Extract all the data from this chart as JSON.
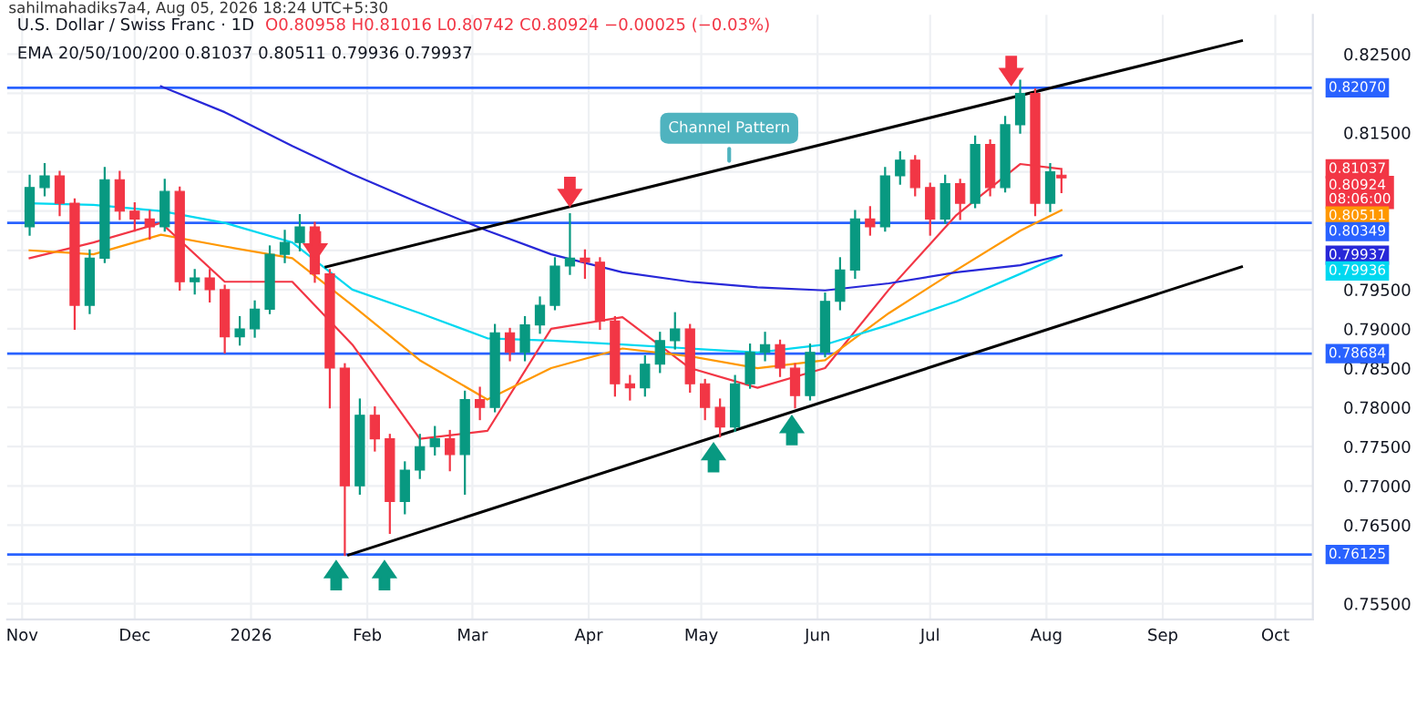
{
  "chart_data": {
    "type": "candlestick",
    "title": "U.S. Dollar / Swiss Franc · 1D",
    "subtitle": "EMA 20/50/100/200 0.81037 0.80511 0.79936 0.79937",
    "annotations": [
      "sahilmahadiks7a4, Aug 05, 2026 18:24 UTC+5:30",
      "O0.80958 H0.81016 L0.80742 C0.80924 −0.00025 (−0.03%)",
      "Channel Pattern",
      "0.80924\n08:06:00",
      "0.81037",
      "0.80511",
      "0.79936",
      "0.79937"
    ],
    "x": [
      "2025-11-03",
      "2025-11-07",
      "2025-11-11",
      "2025-11-15",
      "2025-11-19",
      "2025-11-23",
      "2025-11-27",
      "2025-12-01",
      "2025-12-05",
      "2025-12-09",
      "2025-12-13",
      "2025-12-17",
      "2025-12-21",
      "2025-12-25",
      "2025-12-29",
      "2026-01-02",
      "2026-01-06",
      "2026-01-10",
      "2026-01-14",
      "2026-01-18",
      "2026-01-22",
      "2026-01-26",
      "2026-01-30",
      "2026-02-03",
      "2026-02-07",
      "2026-02-11",
      "2026-02-15",
      "2026-02-19",
      "2026-02-23",
      "2026-02-27",
      "2026-03-03",
      "2026-03-07",
      "2026-03-11",
      "2026-03-15",
      "2026-03-19",
      "2026-03-23",
      "2026-03-27",
      "2026-03-31",
      "2026-04-04",
      "2026-04-08",
      "2026-04-12",
      "2026-04-16",
      "2026-04-20",
      "2026-04-24",
      "2026-04-28",
      "2026-05-02",
      "2026-05-06",
      "2026-05-10",
      "2026-05-14",
      "2026-05-18",
      "2026-05-22",
      "2026-05-26",
      "2026-05-30",
      "2026-06-03",
      "2026-06-07",
      "2026-06-11",
      "2026-06-15",
      "2026-06-19",
      "2026-06-23",
      "2026-06-27",
      "2026-07-01",
      "2026-07-05",
      "2026-07-09",
      "2026-07-13",
      "2026-07-17",
      "2026-07-21",
      "2026-07-25",
      "2026-07-29",
      "2026-08-02",
      "2026-08-05"
    ],
    "ohlc": [
      [
        0.803,
        0.8095,
        0.802,
        0.808
      ],
      [
        0.808,
        0.811,
        0.807,
        0.8095
      ],
      [
        0.8095,
        0.81,
        0.8045,
        0.806
      ],
      [
        0.806,
        0.8065,
        0.79,
        0.793
      ],
      [
        0.793,
        0.8,
        0.792,
        0.799
      ],
      [
        0.799,
        0.8105,
        0.7985,
        0.809
      ],
      [
        0.809,
        0.81,
        0.804,
        0.805
      ],
      [
        0.805,
        0.806,
        0.8025,
        0.804
      ],
      [
        0.804,
        0.805,
        0.8015,
        0.803
      ],
      [
        0.803,
        0.809,
        0.8025,
        0.8075
      ],
      [
        0.8075,
        0.808,
        0.795,
        0.796
      ],
      [
        0.796,
        0.7975,
        0.7945,
        0.7965
      ],
      [
        0.7965,
        0.7975,
        0.7935,
        0.795
      ],
      [
        0.795,
        0.7955,
        0.787,
        0.789
      ],
      [
        0.789,
        0.7915,
        0.788,
        0.79
      ],
      [
        0.79,
        0.7935,
        0.789,
        0.7925
      ],
      [
        0.7925,
        0.8005,
        0.792,
        0.7995
      ],
      [
        0.7995,
        0.8025,
        0.7985,
        0.801
      ],
      [
        0.801,
        0.8045,
        0.8,
        0.803
      ],
      [
        0.803,
        0.8035,
        0.796,
        0.797
      ],
      [
        0.797,
        0.7975,
        0.78,
        0.785
      ],
      [
        0.785,
        0.7855,
        0.7612,
        0.77
      ],
      [
        0.77,
        0.781,
        0.769,
        0.779
      ],
      [
        0.779,
        0.78,
        0.7745,
        0.776
      ],
      [
        0.776,
        0.7765,
        0.764,
        0.768
      ],
      [
        0.768,
        0.773,
        0.7665,
        0.772
      ],
      [
        0.772,
        0.7765,
        0.771,
        0.775
      ],
      [
        0.775,
        0.7775,
        0.774,
        0.776
      ],
      [
        0.776,
        0.777,
        0.772,
        0.774
      ],
      [
        0.774,
        0.782,
        0.769,
        0.781
      ],
      [
        0.781,
        0.7825,
        0.7785,
        0.78
      ],
      [
        0.78,
        0.7905,
        0.7795,
        0.7895
      ],
      [
        0.7895,
        0.79,
        0.786,
        0.787
      ],
      [
        0.787,
        0.7915,
        0.786,
        0.7905
      ],
      [
        0.7905,
        0.794,
        0.7895,
        0.793
      ],
      [
        0.793,
        0.799,
        0.7925,
        0.798
      ],
      [
        0.798,
        0.8046,
        0.797,
        0.799
      ],
      [
        0.799,
        0.8,
        0.7965,
        0.7985
      ],
      [
        0.7985,
        0.799,
        0.79,
        0.791
      ],
      [
        0.791,
        0.7915,
        0.7815,
        0.783
      ],
      [
        0.783,
        0.784,
        0.781,
        0.7825
      ],
      [
        0.7825,
        0.7865,
        0.7815,
        0.7855
      ],
      [
        0.7855,
        0.7895,
        0.7845,
        0.7885
      ],
      [
        0.7885,
        0.792,
        0.7875,
        0.79
      ],
      [
        0.79,
        0.7905,
        0.782,
        0.783
      ],
      [
        0.783,
        0.7835,
        0.7785,
        0.78
      ],
      [
        0.78,
        0.781,
        0.7763,
        0.7775
      ],
      [
        0.7775,
        0.784,
        0.777,
        0.783
      ],
      [
        0.783,
        0.788,
        0.7825,
        0.787
      ],
      [
        0.787,
        0.7895,
        0.786,
        0.788
      ],
      [
        0.788,
        0.7885,
        0.784,
        0.785
      ],
      [
        0.785,
        0.7855,
        0.78,
        0.7815
      ],
      [
        0.7815,
        0.788,
        0.781,
        0.787
      ],
      [
        0.787,
        0.7945,
        0.7865,
        0.7935
      ],
      [
        0.7935,
        0.799,
        0.7925,
        0.7975
      ],
      [
        0.7975,
        0.805,
        0.7965,
        0.804
      ],
      [
        0.804,
        0.8055,
        0.802,
        0.803
      ],
      [
        0.803,
        0.8105,
        0.8025,
        0.8095
      ],
      [
        0.8095,
        0.8125,
        0.8085,
        0.8115
      ],
      [
        0.8115,
        0.812,
        0.807,
        0.808
      ],
      [
        0.808,
        0.8085,
        0.802,
        0.804
      ],
      [
        0.804,
        0.8095,
        0.8035,
        0.8085
      ],
      [
        0.8085,
        0.809,
        0.804,
        0.806
      ],
      [
        0.806,
        0.8145,
        0.8055,
        0.8135
      ],
      [
        0.8135,
        0.814,
        0.807,
        0.808
      ],
      [
        0.808,
        0.817,
        0.8075,
        0.816
      ],
      [
        0.816,
        0.8216,
        0.815,
        0.82
      ],
      [
        0.82,
        0.8205,
        0.8045,
        0.806
      ],
      [
        0.806,
        0.811,
        0.805,
        0.81
      ],
      [
        0.80958,
        0.81016,
        0.80742,
        0.80924
      ]
    ],
    "series": [
      {
        "type": "line",
        "color": "#f23645",
        "x": [
          "2025-11-03",
          "2025-11-20",
          "2025-12-08",
          "2025-12-25",
          "2026-01-12",
          "2026-01-28",
          "2026-02-15",
          "2026-03-05",
          "2026-03-22",
          "2026-04-10",
          "2026-04-28",
          "2026-05-16",
          "2026-06-03",
          "2026-06-20",
          "2026-07-08",
          "2026-07-25",
          "2026-08-05"
        ],
        "values": [
          0.799,
          0.801,
          0.8035,
          0.796,
          0.796,
          0.788,
          0.776,
          0.777,
          0.79,
          0.7915,
          0.785,
          0.7825,
          0.785,
          0.795,
          0.8045,
          0.811,
          0.81037
        ]
      },
      {
        "type": "line",
        "color": "#ff9800",
        "x": [
          "2025-11-03",
          "2025-11-20",
          "2025-12-08",
          "2025-12-25",
          "2026-01-12",
          "2026-01-28",
          "2026-02-15",
          "2026-03-05",
          "2026-03-22",
          "2026-04-10",
          "2026-04-28",
          "2026-05-16",
          "2026-06-03",
          "2026-06-20",
          "2026-07-08",
          "2026-07-25",
          "2026-08-05"
        ],
        "values": [
          0.8,
          0.7995,
          0.802,
          0.8005,
          0.799,
          0.793,
          0.786,
          0.781,
          0.785,
          0.7875,
          0.7865,
          0.785,
          0.786,
          0.792,
          0.7975,
          0.8025,
          0.80511
        ]
      },
      {
        "type": "line",
        "color": "#00d8f0",
        "x": [
          "2025-11-03",
          "2025-11-20",
          "2025-12-08",
          "2025-12-25",
          "2026-01-12",
          "2026-01-28",
          "2026-02-15",
          "2026-03-05",
          "2026-03-22",
          "2026-04-10",
          "2026-04-28",
          "2026-05-16",
          "2026-06-03",
          "2026-06-20",
          "2026-07-08",
          "2026-07-25",
          "2026-08-05"
        ],
        "values": [
          0.806,
          0.8058,
          0.805,
          0.8035,
          0.801,
          0.795,
          0.792,
          0.7888,
          0.7885,
          0.788,
          0.7875,
          0.787,
          0.788,
          0.7905,
          0.7935,
          0.797,
          0.79936
        ]
      },
      {
        "type": "line",
        "color": "#2828d8",
        "x": [
          "2025-12-08",
          "2025-12-25",
          "2026-01-12",
          "2026-01-28",
          "2026-02-15",
          "2026-03-05",
          "2026-03-22",
          "2026-04-10",
          "2026-04-28",
          "2026-05-16",
          "2026-06-03",
          "2026-06-20",
          "2026-07-08",
          "2026-07-25",
          "2026-08-05"
        ],
        "values": [
          0.8209,
          0.8176,
          0.8133,
          0.8097,
          0.806,
          0.8025,
          0.7995,
          0.7972,
          0.796,
          0.7953,
          0.7949,
          0.7958,
          0.7972,
          0.7981,
          0.79937
        ]
      },
      {
        "type": "line",
        "color": "#000000",
        "x": [
          "2026-01-21",
          "2026-09-22"
        ],
        "values": [
          0.7979,
          0.8267
        ]
      },
      {
        "type": "line",
        "color": "#000000",
        "x": [
          "2026-01-27",
          "2026-09-22"
        ],
        "values": [
          0.7612,
          0.7979
        ]
      }
    ],
    "ref_lines": [
      {
        "axis": "y",
        "value": 0.8207,
        "label": "0.82070",
        "color": "#2962ff"
      },
      {
        "axis": "y",
        "value": 0.80349,
        "label": "0.80349",
        "color": "#2962ff"
      },
      {
        "axis": "y",
        "value": 0.78684,
        "label": "0.78684",
        "color": "#2962ff"
      },
      {
        "axis": "y",
        "value": 0.76125,
        "label": "0.76125",
        "color": "#2962ff"
      }
    ],
    "xlim": [
      "2025-10-28",
      "2026-10-11"
    ],
    "xticks": [
      {
        "value": "2025-11-01",
        "label": "Nov"
      },
      {
        "value": "2025-12-01",
        "label": "Dec"
      },
      {
        "value": "2026-01-01",
        "label": "2026"
      },
      {
        "value": "2026-02-01",
        "label": "Feb"
      },
      {
        "value": "2026-03-01",
        "label": "Mar"
      },
      {
        "value": "2026-04-01",
        "label": "Apr"
      },
      {
        "value": "2026-05-01",
        "label": "May"
      },
      {
        "value": "2026-06-01",
        "label": "Jun"
      },
      {
        "value": "2026-07-01",
        "label": "Jul"
      },
      {
        "value": "2026-08-01",
        "label": "Aug"
      },
      {
        "value": "2026-09-01",
        "label": "Sep"
      },
      {
        "value": "2026-10-01",
        "label": "Oct"
      }
    ],
    "ylim": [
      0.753,
      0.83
    ],
    "yticks": [
      {
        "value": 0.755,
        "label": "0.75500"
      },
      {
        "value": 0.76,
        "label": null
      },
      {
        "value": 0.765,
        "label": "0.76500"
      },
      {
        "value": 0.77,
        "label": "0.77000"
      },
      {
        "value": 0.775,
        "label": "0.77500"
      },
      {
        "value": 0.78,
        "label": "0.78000"
      },
      {
        "value": 0.785,
        "label": "0.78500"
      },
      {
        "value": 0.79,
        "label": "0.79000"
      },
      {
        "value": 0.795,
        "label": "0.79500"
      },
      {
        "value": 0.8,
        "label": null
      },
      {
        "value": 0.805,
        "label": null
      },
      {
        "value": 0.81,
        "label": null
      },
      {
        "value": 0.815,
        "label": "0.81500"
      },
      {
        "value": 0.82,
        "label": null
      },
      {
        "value": 0.825,
        "label": "0.82500"
      }
    ],
    "grid": true
  }
}
